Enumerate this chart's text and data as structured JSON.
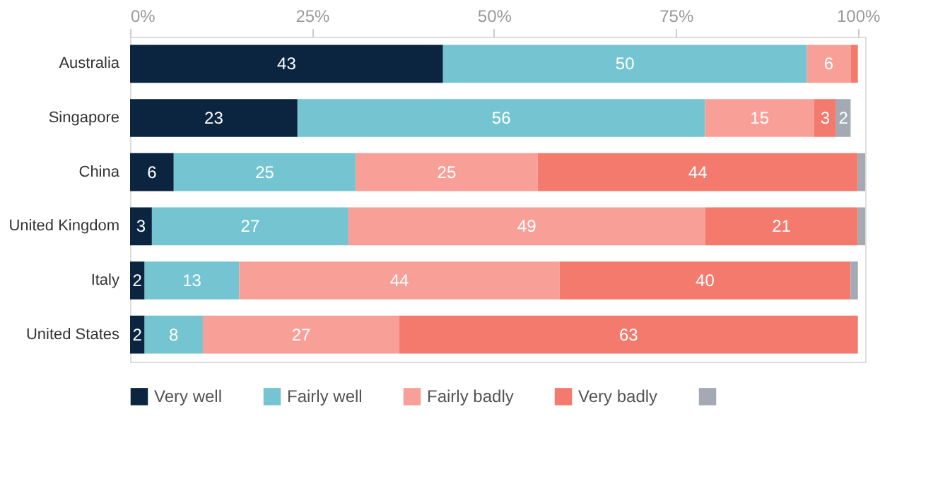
{
  "chart_data": {
    "type": "bar",
    "orientation": "horizontal",
    "stacked": true,
    "categories": [
      "Australia",
      "Singapore",
      "China",
      "United Kingdom",
      "Italy",
      "United States"
    ],
    "series": [
      {
        "name": "Very well",
        "color": "#0b2540",
        "values": [
          43,
          23,
          6,
          3,
          2,
          2
        ],
        "value_labels": [
          "43",
          "23",
          "6",
          "3",
          "2",
          "2"
        ]
      },
      {
        "name": "Fairly well",
        "color": "#74c5d1",
        "values": [
          50,
          56,
          25,
          27,
          13,
          8
        ],
        "value_labels": [
          "50",
          "56",
          "25",
          "27",
          "13",
          "8"
        ]
      },
      {
        "name": "Fairly badly",
        "color": "#f8a098",
        "values": [
          6,
          15,
          25,
          49,
          44,
          27
        ],
        "value_labels": [
          "6",
          "15",
          "25",
          "49",
          "44",
          "27"
        ]
      },
      {
        "name": "Very badly",
        "color": "#f47a6e",
        "values": [
          1,
          3,
          44,
          21,
          40,
          63
        ],
        "value_labels": [
          null,
          "3",
          "44",
          "21",
          "40",
          "63"
        ]
      },
      {
        "color": "#a3aab3",
        "values": [
          0,
          2,
          1,
          1,
          1,
          0
        ],
        "value_labels": [
          null,
          "2",
          null,
          null,
          null,
          null
        ]
      }
    ],
    "xlim": [
      0,
      101
    ],
    "xticks": [
      {
        "value": 0,
        "label": "0%"
      },
      {
        "value": 25,
        "label": "25%"
      },
      {
        "value": 50,
        "label": "50%"
      },
      {
        "value": 75,
        "label": "75%"
      },
      {
        "value": 100,
        "label": "100%"
      }
    ],
    "grid": false,
    "legend": "bottom"
  }
}
